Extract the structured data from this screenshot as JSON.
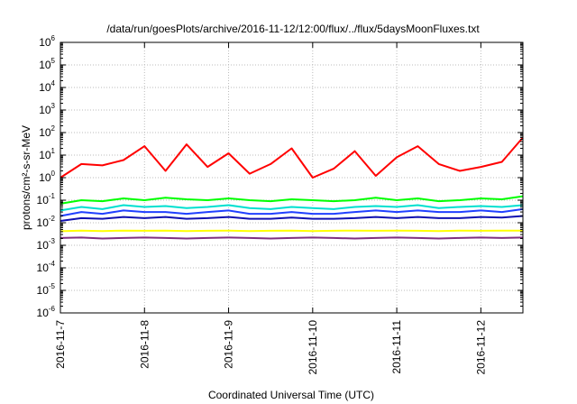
{
  "chart_data": {
    "type": "line",
    "title": "/data/run/goesPlots/archive/2016-11-12/12:00/flux/../flux/5daysMoonFluxes.txt",
    "xlabel": "Coordinated Universal Time (UTC)",
    "ylabel": "protons/cm²-s-sr-MeV",
    "yscale": "log",
    "ylim": [
      1e-06,
      1000000.0
    ],
    "xlim": [
      "2016-11-07",
      "2016-11-12 12:00"
    ],
    "grid": true,
    "legend": "none",
    "x_ticks": [
      "2016-11-7",
      "2016-11-8",
      "2016-11-9",
      "2016-11-10",
      "2016-11-11",
      "2016-11-12"
    ],
    "y_ticks": [
      {
        "base": "10",
        "exp": "6"
      },
      {
        "base": "10",
        "exp": "5"
      },
      {
        "base": "10",
        "exp": "4"
      },
      {
        "base": "10",
        "exp": "3"
      },
      {
        "base": "10",
        "exp": "2"
      },
      {
        "base": "10",
        "exp": "1"
      },
      {
        "base": "10",
        "exp": "0"
      },
      {
        "base": "10",
        "exp": "-1"
      },
      {
        "base": "10",
        "exp": "-2"
      },
      {
        "base": "10",
        "exp": "-3"
      },
      {
        "base": "10",
        "exp": "-4"
      },
      {
        "base": "10",
        "exp": "-5"
      },
      {
        "base": "10",
        "exp": "-6"
      }
    ],
    "x": [
      "2016-11-07 00:00",
      "2016-11-07 06:00",
      "2016-11-07 12:00",
      "2016-11-07 18:00",
      "2016-11-08 00:00",
      "2016-11-08 06:00",
      "2016-11-08 12:00",
      "2016-11-08 18:00",
      "2016-11-09 00:00",
      "2016-11-09 06:00",
      "2016-11-09 12:00",
      "2016-11-09 18:00",
      "2016-11-10 00:00",
      "2016-11-10 06:00",
      "2016-11-10 12:00",
      "2016-11-10 18:00",
      "2016-11-11 00:00",
      "2016-11-11 06:00",
      "2016-11-11 12:00",
      "2016-11-11 18:00",
      "2016-11-12 00:00",
      "2016-11-12 06:00",
      "2016-11-12 12:00"
    ],
    "series": [
      {
        "color": "#ff0000",
        "values": [
          1.0,
          4.0,
          3.5,
          6.0,
          25.0,
          2.0,
          30.0,
          3.0,
          12.0,
          1.5,
          4.0,
          20.0,
          1.0,
          2.5,
          15.0,
          1.2,
          8.0,
          25.0,
          4.0,
          2.0,
          3.0,
          5.0,
          60.0
        ]
      },
      {
        "color": "#00ff00",
        "values": [
          0.07,
          0.1,
          0.09,
          0.12,
          0.1,
          0.13,
          0.11,
          0.1,
          0.12,
          0.1,
          0.09,
          0.11,
          0.1,
          0.09,
          0.1,
          0.13,
          0.1,
          0.12,
          0.09,
          0.1,
          0.12,
          0.11,
          0.15
        ]
      },
      {
        "color": "#00e0d0",
        "values": [
          0.035,
          0.05,
          0.04,
          0.06,
          0.05,
          0.055,
          0.045,
          0.05,
          0.06,
          0.045,
          0.04,
          0.05,
          0.045,
          0.04,
          0.05,
          0.055,
          0.05,
          0.06,
          0.045,
          0.05,
          0.055,
          0.05,
          0.06
        ]
      },
      {
        "color": "#2040ff",
        "values": [
          0.02,
          0.03,
          0.025,
          0.035,
          0.03,
          0.03,
          0.025,
          0.03,
          0.035,
          0.025,
          0.025,
          0.03,
          0.025,
          0.025,
          0.03,
          0.035,
          0.03,
          0.035,
          0.03,
          0.03,
          0.035,
          0.03,
          0.04
        ]
      },
      {
        "color": "#1010b0",
        "values": [
          0.012,
          0.016,
          0.015,
          0.018,
          0.016,
          0.018,
          0.015,
          0.016,
          0.018,
          0.015,
          0.015,
          0.017,
          0.015,
          0.015,
          0.016,
          0.018,
          0.016,
          0.018,
          0.016,
          0.016,
          0.018,
          0.017,
          0.02
        ]
      },
      {
        "color": "#ffff00",
        "values": [
          0.0042,
          0.0045,
          0.0043,
          0.0045,
          0.0044,
          0.0045,
          0.0043,
          0.0044,
          0.0045,
          0.0043,
          0.0044,
          0.0045,
          0.0043,
          0.0044,
          0.0045,
          0.0044,
          0.0045,
          0.0044,
          0.0043,
          0.0045,
          0.0044,
          0.0045,
          0.0045
        ]
      },
      {
        "color": "#803080",
        "values": [
          0.0021,
          0.0022,
          0.002,
          0.0021,
          0.0022,
          0.0021,
          0.002,
          0.0021,
          0.0022,
          0.0021,
          0.002,
          0.0021,
          0.0022,
          0.0021,
          0.002,
          0.0021,
          0.0022,
          0.0021,
          0.002,
          0.0021,
          0.0022,
          0.0021,
          0.0022
        ]
      }
    ]
  }
}
